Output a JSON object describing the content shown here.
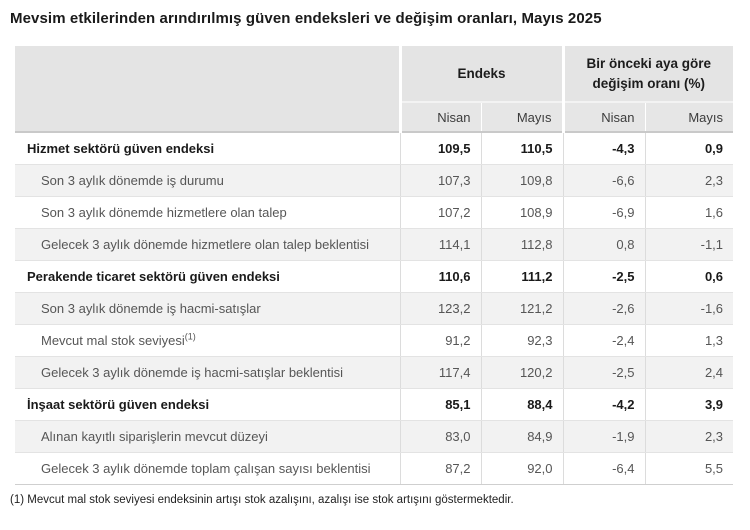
{
  "title": "Mevsim etkilerinden arındırılmış güven endeksleri ve değişim oranları, Mayıs 2025",
  "table": {
    "column_groups": [
      {
        "label": "Endeks"
      },
      {
        "label": "Bir önceki aya göre değişim oranı (%)"
      }
    ],
    "sub_headers": [
      "Nisan",
      "Mayıs",
      "Nisan",
      "Mayıs"
    ],
    "rows": [
      {
        "label": "Hizmet sektörü güven endeksi",
        "bold": true,
        "values": [
          "109,5",
          "110,5",
          "-4,3",
          "0,9"
        ]
      },
      {
        "label": "Son 3 aylık dönemde iş durumu",
        "bold": false,
        "values": [
          "107,3",
          "109,8",
          "-6,6",
          "2,3"
        ]
      },
      {
        "label": "Son 3 aylık dönemde hizmetlere olan talep",
        "bold": false,
        "values": [
          "107,2",
          "108,9",
          "-6,9",
          "1,6"
        ]
      },
      {
        "label": "Gelecek 3 aylık dönemde hizmetlere olan talep beklentisi",
        "bold": false,
        "values": [
          "114,1",
          "112,8",
          "0,8",
          "-1,1"
        ]
      },
      {
        "label": "Perakende ticaret sektörü güven endeksi",
        "bold": true,
        "values": [
          "110,6",
          "111,2",
          "-2,5",
          "0,6"
        ]
      },
      {
        "label": "Son 3 aylık dönemde iş hacmi-satışlar",
        "bold": false,
        "values": [
          "123,2",
          "121,2",
          "-2,6",
          "-1,6"
        ]
      },
      {
        "label": "Mevcut mal stok seviyesi",
        "sup": "(1)",
        "bold": false,
        "values": [
          "91,2",
          "92,3",
          "-2,4",
          "1,3"
        ]
      },
      {
        "label": "Gelecek 3 aylık dönemde iş hacmi-satışlar beklentisi",
        "bold": false,
        "values": [
          "117,4",
          "120,2",
          "-2,5",
          "2,4"
        ]
      },
      {
        "label": "İnşaat sektörü güven endeksi",
        "bold": true,
        "values": [
          "85,1",
          "88,4",
          "-4,2",
          "3,9"
        ]
      },
      {
        "label": "Alınan kayıtlı siparişlerin mevcut düzeyi",
        "bold": false,
        "values": [
          "83,0",
          "84,9",
          "-1,9",
          "2,3"
        ]
      },
      {
        "label": "Gelecek 3 aylık dönemde toplam çalışan sayısı beklentisi",
        "bold": false,
        "values": [
          "87,2",
          "92,0",
          "-6,4",
          "5,5"
        ]
      }
    ]
  },
  "footnote": "(1) Mevcut mal stok seviyesi endeksinin artışı stok azalışını, azalışı ise stok artışını göstermektedir.",
  "colors": {
    "header_bg": "#e4e4e4",
    "stripe_bg": "#f2f2f2",
    "row_border": "#e3e3e3",
    "header_bottom_border": "#c9c9c9",
    "column_separator": "#dcdcdc",
    "section_text": "#1a1a1a",
    "sub_text": "#565656"
  }
}
